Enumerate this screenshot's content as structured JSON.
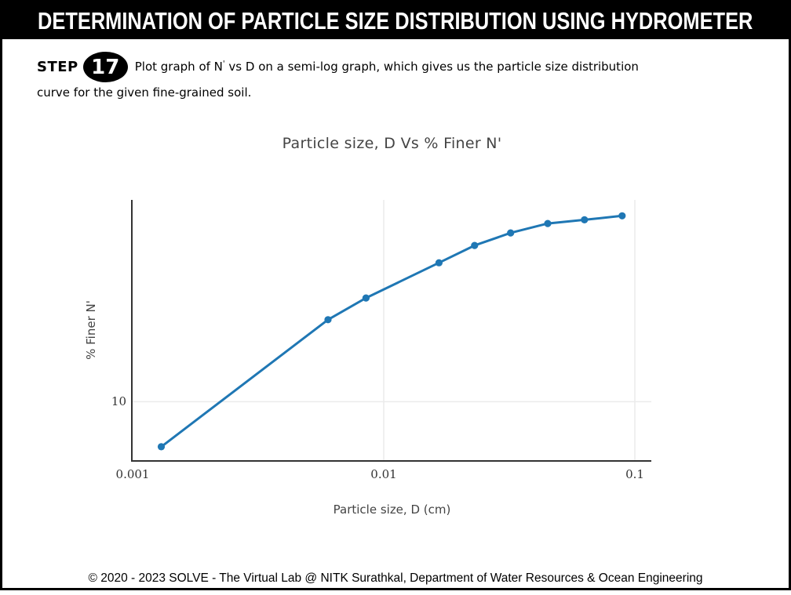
{
  "header": {
    "title": "DETERMINATION OF PARTICLE SIZE DISTRIBUTION USING HYDROMETER"
  },
  "step": {
    "label": "STEP",
    "number": "17",
    "line1_before_sup": "Plot graph of N",
    "sup": "'",
    "line1_after_sup": " vs D on a semi-log graph, which gives us the particle size distribution",
    "line2": "curve for the given fine-grained soil."
  },
  "chart": {
    "title": "Particle size, D Vs % Finer N'",
    "xlabel": "Particle size, D (cm)",
    "ylabel": "% Finer N'"
  },
  "chart_data": {
    "type": "line",
    "title": "Particle size, D Vs % Finer N'",
    "xlabel": "Particle size, D (cm)",
    "ylabel": "% Finer N'",
    "x_scale": "log",
    "y_scale": "log",
    "series": [
      {
        "name": "% Finer N'",
        "x": [
          0.0013,
          0.006,
          0.0085,
          0.0166,
          0.023,
          0.032,
          0.045,
          0.063,
          0.089
        ],
        "y": [
          6.7,
          20.7,
          25.1,
          34.3,
          40.0,
          44.7,
          48.6,
          50.2,
          52.0
        ]
      }
    ],
    "xlim": [
      0.001,
      0.1163
    ],
    "ylim": [
      5.95,
      59.9
    ],
    "x_ticks": [
      {
        "v": 0.001,
        "label": "0.001"
      },
      {
        "v": 0.01,
        "label": "0.01"
      },
      {
        "v": 0.1,
        "label": "0.1"
      }
    ],
    "y_ticks": [
      {
        "v": 10,
        "label": "10"
      }
    ],
    "x_gridlines": [
      0.01,
      0.1
    ],
    "y_gridlines": [
      10
    ],
    "legend_position": "none",
    "marker": "circle",
    "line_color": "#1f77b4",
    "marker_color": "#1f77b4",
    "grid_color": "#ebebeb",
    "axis_color": "#333333",
    "text_color": "#444444"
  },
  "footer": {
    "text": "© 2020 - 2023 SOLVE - The Virtual Lab @ NITK Surathkal, Department of Water Resources & Ocean Engineering"
  }
}
